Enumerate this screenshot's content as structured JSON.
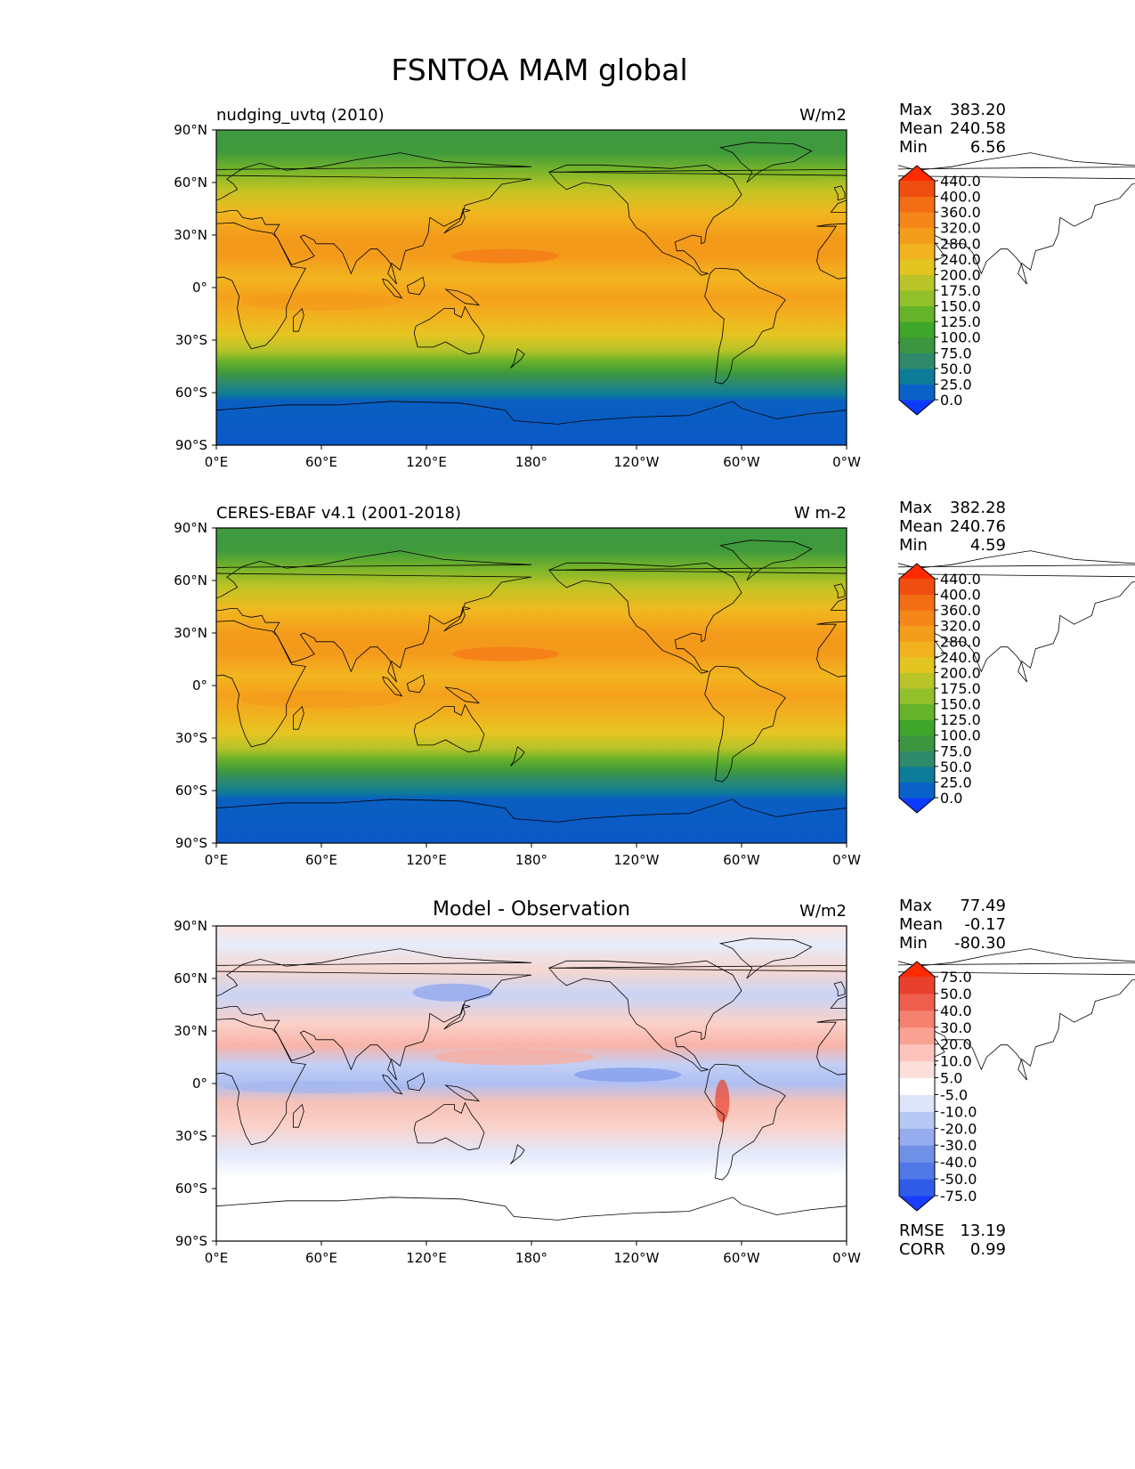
{
  "title": "FSNTOA MAM global",
  "x_ticks": [
    "0°E",
    "60°E",
    "120°E",
    "180°",
    "120°W",
    "60°W",
    "0°W"
  ],
  "y_ticks": [
    "90°N",
    "60°N",
    "30°N",
    "0°",
    "30°S",
    "60°S",
    "90°S"
  ],
  "panels": [
    {
      "id": "test",
      "left_title": "nudging_uvtq (2010)",
      "center_title": "",
      "units": "W/m2",
      "stats": [
        {
          "label": "Max",
          "value": "383.20"
        },
        {
          "label": "Mean",
          "value": "240.58"
        },
        {
          "label": "Min",
          "value": "6.56"
        }
      ],
      "colorbar": {
        "levels": [
          "0.0",
          "25.0",
          "50.0",
          "75.0",
          "100.0",
          "125.0",
          "150.0",
          "175.0",
          "200.0",
          "240.0",
          "280.0",
          "320.0",
          "360.0",
          "400.0",
          "440.0"
        ],
        "colors": [
          "#0c3bff",
          "#0a62c8",
          "#0d7c98",
          "#2f8a6c",
          "#3c9640",
          "#3ea62a",
          "#66b42a",
          "#92c02a",
          "#b9c428",
          "#e2c521",
          "#f2b21f",
          "#f49d1b",
          "#f4861a",
          "#f36d14",
          "#f04e10",
          "#ff2a00"
        ]
      },
      "footer_stats": []
    },
    {
      "id": "reference",
      "left_title": "CERES-EBAF v4.1 (2001-2018)",
      "center_title": "",
      "units": "W m-2",
      "stats": [
        {
          "label": "Max",
          "value": "382.28"
        },
        {
          "label": "Mean",
          "value": "240.76"
        },
        {
          "label": "Min",
          "value": "4.59"
        }
      ],
      "colorbar": {
        "levels": [
          "0.0",
          "25.0",
          "50.0",
          "75.0",
          "100.0",
          "125.0",
          "150.0",
          "175.0",
          "200.0",
          "240.0",
          "280.0",
          "320.0",
          "360.0",
          "400.0",
          "440.0"
        ],
        "colors": [
          "#0c3bff",
          "#0a62c8",
          "#0d7c98",
          "#2f8a6c",
          "#3c9640",
          "#3ea62a",
          "#66b42a",
          "#92c02a",
          "#b9c428",
          "#e2c521",
          "#f2b21f",
          "#f49d1b",
          "#f4861a",
          "#f36d14",
          "#f04e10",
          "#ff2a00"
        ]
      },
      "footer_stats": []
    },
    {
      "id": "difference",
      "left_title": "",
      "center_title": "Model - Observation",
      "units": "W/m2",
      "stats": [
        {
          "label": "Max",
          "value": "77.49"
        },
        {
          "label": "Mean",
          "value": "-0.17"
        },
        {
          "label": "Min",
          "value": "-80.30"
        }
      ],
      "colorbar": {
        "levels": [
          "-75.0",
          "-50.0",
          "-40.0",
          "-30.0",
          "-20.0",
          "-10.0",
          "-5.0",
          "5.0",
          "10.0",
          "20.0",
          "30.0",
          "40.0",
          "50.0",
          "75.0"
        ],
        "colors": [
          "#1a3cff",
          "#2f5be8",
          "#5078e6",
          "#7090e8",
          "#95acee",
          "#b8c8f4",
          "#dde5fa",
          "#ffffff",
          "#fde0dc",
          "#fcc4bc",
          "#f9a293",
          "#f5806e",
          "#ef5e4c",
          "#e9402e",
          "#ff2a00"
        ]
      },
      "footer_stats": [
        {
          "label": "RMSE",
          "value": "13.19"
        },
        {
          "label": "CORR",
          "value": "0.99"
        }
      ]
    }
  ]
}
